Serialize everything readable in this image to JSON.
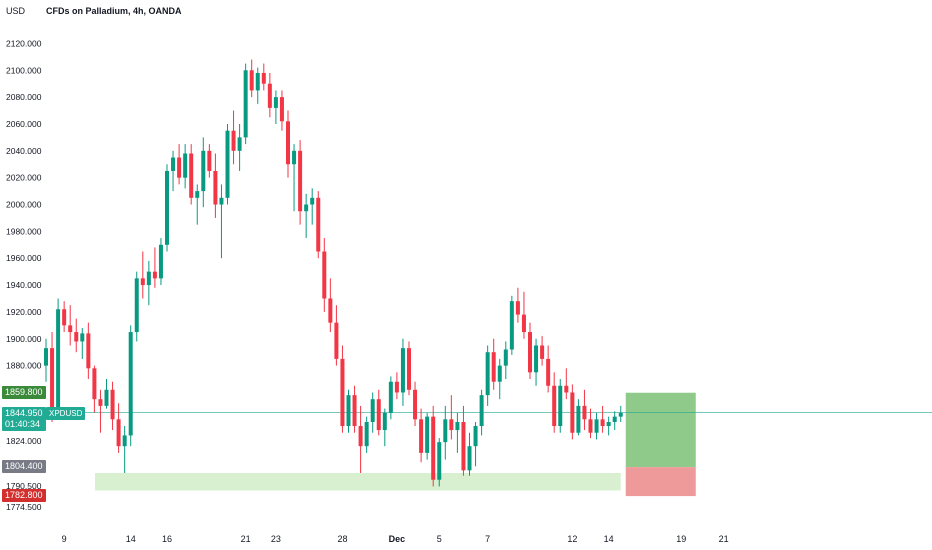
{
  "header": {
    "title": "CFDs on Palladium, 4h, OANDA",
    "currency": "USD"
  },
  "colors": {
    "up": "#089981",
    "down": "#f23645",
    "zone": "#d8f0cf",
    "profit": "#8fca8a",
    "loss": "#ef9a9a",
    "current_line": "#22ab94"
  },
  "badges": {
    "tp": {
      "label": "1859.800",
      "color": "#3a8a3a",
      "price": 1859.8
    },
    "current": {
      "label": "1844.950",
      "ticker": "XPDUSD",
      "countdown": "01:40:34",
      "price": 1844.95
    },
    "entry": {
      "label": "1804.400",
      "color": "#787b86",
      "price": 1804.4
    },
    "sl": {
      "label": "1782.800",
      "color": "#d32f2f",
      "price": 1782.8
    }
  },
  "chart_data": {
    "type": "candlestick",
    "title": "CFDs on Palladium, 4h, OANDA",
    "symbol": "XPDUSD",
    "ylabel": "USD",
    "ylim": [
      1765,
      2130
    ],
    "y_ticks": [
      "2120.000",
      "2100.000",
      "2080.000",
      "2060.000",
      "2040.000",
      "2020.000",
      "2000.000",
      "1980.000",
      "1960.000",
      "1940.000",
      "1920.000",
      "1900.000",
      "1880.000",
      "1824.000",
      "1790.500",
      "1774.500"
    ],
    "y_tick_values": [
      2120,
      2100,
      2080,
      2060,
      2040,
      2020,
      2000,
      1980,
      1960,
      1940,
      1920,
      1900,
      1880,
      1824,
      1790.5,
      1774.5
    ],
    "x_ticks": [
      "9",
      "14",
      "16",
      "21",
      "23",
      "28",
      "Dec",
      "5",
      "7",
      "12",
      "14",
      "19",
      "21"
    ],
    "x_tick_index": [
      3,
      14,
      20,
      33,
      38,
      49,
      58,
      65,
      73,
      87,
      93,
      105,
      112
    ],
    "candles": [
      [
        1880,
        1900,
        1868,
        1893
      ],
      [
        1893,
        1905,
        1838,
        1848
      ],
      [
        1848,
        1930,
        1840,
        1922
      ],
      [
        1922,
        1928,
        1905,
        1910
      ],
      [
        1910,
        1925,
        1895,
        1905
      ],
      [
        1905,
        1915,
        1890,
        1898
      ],
      [
        1898,
        1908,
        1885,
        1904
      ],
      [
        1904,
        1912,
        1870,
        1878
      ],
      [
        1878,
        1880,
        1845,
        1855
      ],
      [
        1855,
        1862,
        1830,
        1850
      ],
      [
        1850,
        1870,
        1848,
        1862
      ],
      [
        1862,
        1868,
        1832,
        1840
      ],
      [
        1840,
        1852,
        1815,
        1820
      ],
      [
        1820,
        1835,
        1800,
        1828
      ],
      [
        1828,
        1910,
        1820,
        1905
      ],
      [
        1905,
        1950,
        1898,
        1945
      ],
      [
        1945,
        1965,
        1930,
        1940
      ],
      [
        1940,
        1958,
        1925,
        1950
      ],
      [
        1950,
        1968,
        1938,
        1945
      ],
      [
        1945,
        1975,
        1940,
        1970
      ],
      [
        1970,
        2030,
        1965,
        2025
      ],
      [
        2025,
        2040,
        2010,
        2035
      ],
      [
        2035,
        2045,
        2015,
        2020
      ],
      [
        2020,
        2045,
        2012,
        2038
      ],
      [
        2038,
        2045,
        2000,
        2005
      ],
      [
        2005,
        2015,
        1985,
        2010
      ],
      [
        2010,
        2050,
        1998,
        2040
      ],
      [
        2040,
        2045,
        2020,
        2025
      ],
      [
        2025,
        2038,
        1990,
        2000
      ],
      [
        2000,
        2015,
        1960,
        2005
      ],
      [
        2005,
        2060,
        2000,
        2055
      ],
      [
        2055,
        2070,
        2030,
        2040
      ],
      [
        2040,
        2060,
        2025,
        2050
      ],
      [
        2050,
        2105,
        2045,
        2100
      ],
      [
        2100,
        2108,
        2080,
        2085
      ],
      [
        2085,
        2102,
        2075,
        2098
      ],
      [
        2098,
        2105,
        2085,
        2090
      ],
      [
        2090,
        2098,
        2065,
        2072
      ],
      [
        2072,
        2085,
        2060,
        2080
      ],
      [
        2080,
        2085,
        2055,
        2062
      ],
      [
        2062,
        2070,
        2020,
        2030
      ],
      [
        2030,
        2045,
        1995,
        2040
      ],
      [
        2040,
        2048,
        1985,
        1995
      ],
      [
        1995,
        2008,
        1975,
        2000
      ],
      [
        2000,
        2012,
        1985,
        2005
      ],
      [
        2005,
        2010,
        1960,
        1965
      ],
      [
        1965,
        1975,
        1920,
        1930
      ],
      [
        1930,
        1945,
        1905,
        1912
      ],
      [
        1912,
        1925,
        1880,
        1885
      ],
      [
        1885,
        1895,
        1830,
        1835
      ],
      [
        1835,
        1862,
        1830,
        1858
      ],
      [
        1858,
        1865,
        1830,
        1835
      ],
      [
        1835,
        1850,
        1800,
        1820
      ],
      [
        1820,
        1842,
        1815,
        1838
      ],
      [
        1838,
        1860,
        1830,
        1855
      ],
      [
        1855,
        1862,
        1828,
        1832
      ],
      [
        1832,
        1848,
        1820,
        1845
      ],
      [
        1845,
        1872,
        1840,
        1868
      ],
      [
        1868,
        1875,
        1855,
        1860
      ],
      [
        1860,
        1900,
        1850,
        1893
      ],
      [
        1893,
        1898,
        1858,
        1862
      ],
      [
        1862,
        1868,
        1835,
        1840
      ],
      [
        1840,
        1848,
        1808,
        1815
      ],
      [
        1815,
        1845,
        1810,
        1842
      ],
      [
        1842,
        1850,
        1790,
        1795
      ],
      [
        1795,
        1826,
        1790,
        1823
      ],
      [
        1823,
        1850,
        1810,
        1840
      ],
      [
        1840,
        1858,
        1825,
        1832
      ],
      [
        1832,
        1845,
        1815,
        1838
      ],
      [
        1838,
        1850,
        1798,
        1802
      ],
      [
        1802,
        1830,
        1798,
        1820
      ],
      [
        1820,
        1838,
        1805,
        1835
      ],
      [
        1835,
        1862,
        1828,
        1858
      ],
      [
        1858,
        1895,
        1850,
        1890
      ],
      [
        1890,
        1900,
        1862,
        1868
      ],
      [
        1868,
        1885,
        1855,
        1880
      ],
      [
        1880,
        1898,
        1870,
        1892
      ],
      [
        1892,
        1932,
        1888,
        1928
      ],
      [
        1928,
        1938,
        1912,
        1918
      ],
      [
        1918,
        1935,
        1900,
        1905
      ],
      [
        1905,
        1912,
        1870,
        1875
      ],
      [
        1875,
        1900,
        1865,
        1895
      ],
      [
        1895,
        1902,
        1880,
        1885
      ],
      [
        1885,
        1895,
        1860,
        1865
      ],
      [
        1865,
        1875,
        1830,
        1835
      ],
      [
        1835,
        1870,
        1830,
        1865
      ],
      [
        1865,
        1878,
        1855,
        1860
      ],
      [
        1860,
        1866,
        1825,
        1830
      ],
      [
        1830,
        1855,
        1828,
        1850
      ],
      [
        1850,
        1862,
        1832,
        1840
      ],
      [
        1840,
        1848,
        1826,
        1830
      ],
      [
        1830,
        1845,
        1825,
        1840
      ],
      [
        1840,
        1850,
        1830,
        1835
      ],
      [
        1835,
        1842,
        1828,
        1838
      ],
      [
        1838,
        1846,
        1832,
        1842
      ],
      [
        1842,
        1850,
        1838,
        1845
      ]
    ],
    "position": {
      "type": "long",
      "entry": 1804.4,
      "take_profit": 1859.8,
      "stop_loss": 1782.8
    },
    "support_zone": {
      "from": 1787,
      "to": 1800
    }
  }
}
